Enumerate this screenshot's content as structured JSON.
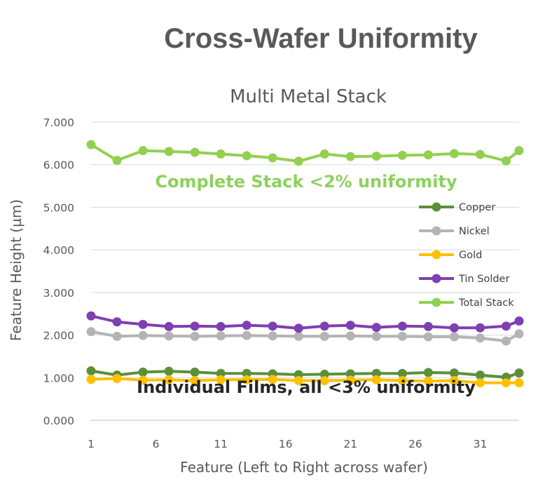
{
  "header": {
    "title": "Cross-Wafer Uniformity"
  },
  "annotations": {
    "complete": "Complete Stack <2% uniformity",
    "individual": "Individual Films, all <3% uniformity"
  },
  "chart_data": {
    "type": "line",
    "title": "Multi Metal Stack",
    "xlabel": "Feature (Left to Right across wafer)",
    "ylabel": "Feature Height (µm)",
    "ylim": [
      0,
      7
    ],
    "yticks": [
      "0.000",
      "1.000",
      "2.000",
      "3.000",
      "4.000",
      "5.000",
      "6.000",
      "7.000"
    ],
    "xticks": [
      "1",
      "6",
      "11",
      "16",
      "21",
      "26",
      "31"
    ],
    "grid": "horizontal",
    "legend_position": "right",
    "x": [
      1,
      3,
      5,
      7,
      9,
      11,
      13,
      15,
      17,
      19,
      21,
      23,
      25,
      27,
      29,
      31,
      33,
      34
    ],
    "series": [
      {
        "name": "Copper",
        "color": "#5B8F3A",
        "values": [
          1.16,
          1.06,
          1.13,
          1.15,
          1.13,
          1.1,
          1.1,
          1.09,
          1.07,
          1.08,
          1.09,
          1.1,
          1.1,
          1.12,
          1.11,
          1.06,
          1.01,
          1.11
        ]
      },
      {
        "name": "Nickel",
        "color": "#B4B4B4",
        "values": [
          2.08,
          1.97,
          1.99,
          1.98,
          1.97,
          1.98,
          1.99,
          1.98,
          1.97,
          1.97,
          1.98,
          1.97,
          1.97,
          1.96,
          1.96,
          1.93,
          1.86,
          2.03
        ]
      },
      {
        "name": "Gold",
        "color": "#FFC000",
        "values": [
          0.96,
          0.98,
          0.94,
          0.95,
          0.93,
          0.95,
          0.95,
          0.96,
          0.93,
          0.93,
          0.94,
          0.95,
          0.93,
          0.92,
          0.93,
          0.88,
          0.88,
          0.88
        ]
      },
      {
        "name": "Tin Solder",
        "color": "#7D3FB2",
        "values": [
          2.45,
          2.31,
          2.25,
          2.2,
          2.21,
          2.2,
          2.23,
          2.21,
          2.16,
          2.21,
          2.23,
          2.18,
          2.21,
          2.2,
          2.17,
          2.17,
          2.21,
          2.33
        ]
      },
      {
        "name": "Total Stack",
        "color": "#92D050",
        "values": [
          6.47,
          6.1,
          6.33,
          6.31,
          6.29,
          6.25,
          6.21,
          6.16,
          6.08,
          6.25,
          6.19,
          6.2,
          6.22,
          6.23,
          6.26,
          6.24,
          6.09,
          6.33
        ]
      }
    ]
  }
}
